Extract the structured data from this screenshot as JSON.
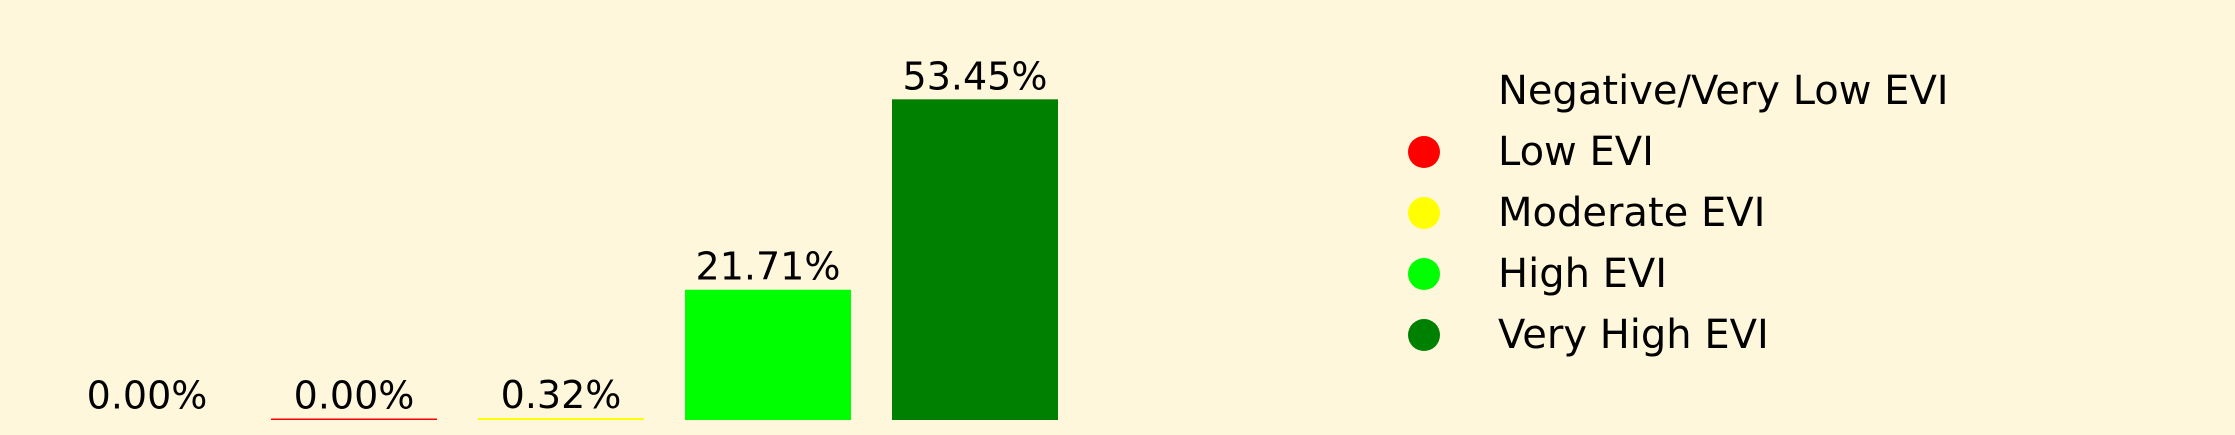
{
  "chart_data": {
    "type": "bar",
    "categories": [
      "Negative/Very Low EVI",
      "Low EVI",
      "Moderate EVI",
      "High EVI",
      "Very High EVI"
    ],
    "values": [
      0.0,
      0.0,
      0.32,
      21.71,
      53.45
    ],
    "labels": [
      "0.00%",
      "0.00%",
      "0.32%",
      "21.71%",
      "53.45%"
    ],
    "colors": [
      "#fff7dc",
      "#ff0000",
      "#ffff00",
      "#00ff00",
      "#008000"
    ],
    "ylim": [
      0,
      60
    ],
    "title": "",
    "xlabel": "",
    "ylabel": "",
    "grid": false,
    "legend_position": "right"
  },
  "legend": {
    "items": [
      {
        "label": "Negative/Very Low EVI",
        "color": "#fff7dc"
      },
      {
        "label": "Low EVI",
        "color": "#ff0000"
      },
      {
        "label": "Moderate EVI",
        "color": "#ffff00"
      },
      {
        "label": "High EVI",
        "color": "#00ff00"
      },
      {
        "label": "Very High EVI",
        "color": "#008000"
      }
    ]
  }
}
